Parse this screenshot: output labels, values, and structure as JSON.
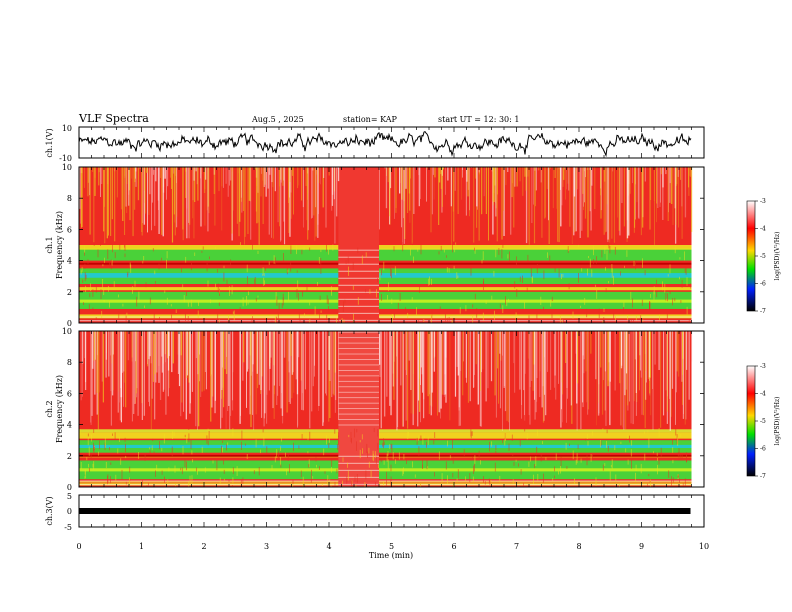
{
  "header": {
    "title": "VLF Spectra",
    "date": "Aug.5 , 2025",
    "station": "station= KAP",
    "start": "start UT = 12: 30: 1"
  },
  "chart_data": [
    {
      "type": "line",
      "panel": "ch1-waveform",
      "ylabel": "ch.1(V)",
      "ylim": [
        -10,
        10
      ],
      "ytick_labels": [
        "10",
        "-10"
      ],
      "xlim": [
        0,
        10
      ]
    },
    {
      "type": "heatmap",
      "panel": "ch1-spectrogram",
      "ylabel": "ch.1\nFrequency (kHz)",
      "ylim": [
        0,
        10
      ],
      "ytick_labels": [
        "0",
        "2",
        "4",
        "6",
        "8",
        "10"
      ],
      "xlim": [
        0,
        10
      ],
      "data_end_min": 9.8,
      "gap_min": [
        4.15,
        4.8
      ],
      "colorbar": {
        "label": "log(PSD)(V²/Hz)",
        "range": [
          -7,
          -3
        ],
        "tick_labels": [
          "-3",
          "-4",
          "-5",
          "-6",
          "-7"
        ]
      }
    },
    {
      "type": "heatmap",
      "panel": "ch2-spectrogram",
      "ylabel": "ch.2\nFrequency (kHz)",
      "ylim": [
        0,
        10
      ],
      "ytick_labels": [
        "0",
        "2",
        "4",
        "6",
        "8",
        "10"
      ],
      "xlim": [
        0,
        10
      ],
      "data_end_min": 9.8,
      "gap_min": [
        4.15,
        4.8
      ],
      "colorbar": {
        "label": "log(PSD)(V²/Hz)",
        "range": [
          -7,
          -3
        ],
        "tick_labels": [
          "-3",
          "-4",
          "-5",
          "-6",
          "-7"
        ]
      }
    },
    {
      "type": "line",
      "panel": "ch3-waveform",
      "ylabel": "ch.3(V)",
      "ylim": [
        -5,
        5
      ],
      "ytick_labels": [
        "5",
        "0",
        "-5"
      ],
      "xlim": [
        0,
        10
      ],
      "level_v": 0
    }
  ],
  "xaxis": {
    "label": "Time (min)",
    "tick_labels": [
      "0",
      "1",
      "2",
      "3",
      "4",
      "5",
      "6",
      "7",
      "8",
      "9",
      "10"
    ]
  },
  "colors": {
    "spectrum_bg": "#ee2a22",
    "band_green": "#3ce03c",
    "band_yellow": "#f0e020",
    "band_cyan": "#20c8d8"
  }
}
